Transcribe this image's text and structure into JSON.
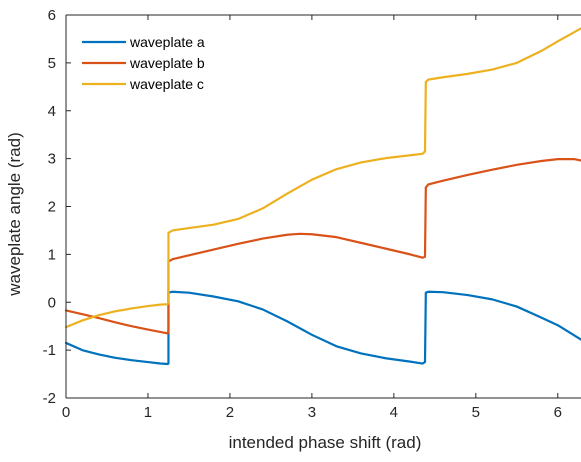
{
  "chart_data": {
    "type": "line",
    "xlabel": "intended phase shift (rad)",
    "ylabel": "waveplate angle (rad)",
    "xlim": [
      0,
      6.2832
    ],
    "ylim": [
      -2,
      6
    ],
    "xticks": [
      0,
      1,
      2,
      3,
      4,
      5,
      6
    ],
    "yticks": [
      -2,
      -1,
      0,
      1,
      2,
      3,
      4,
      5,
      6
    ],
    "grid": false,
    "legend_position": "top-left",
    "series": [
      {
        "name": "waveplate a",
        "color": "#0072BD",
        "segments": [
          {
            "x": [
              0,
              0.2,
              0.4,
              0.6,
              0.8,
              1.0,
              1.15,
              1.24,
              1.25
            ],
            "y": [
              -0.85,
              -1.0,
              -1.09,
              -1.16,
              -1.21,
              -1.25,
              -1.28,
              -1.29,
              -1.28
            ]
          },
          {
            "x": [
              1.25,
              1.3,
              1.5,
              1.8,
              2.1,
              2.4,
              2.7,
              3.0,
              3.3,
              3.6,
              3.9,
              4.2,
              4.35,
              4.38
            ],
            "y": [
              0.2,
              0.22,
              0.2,
              0.12,
              0.02,
              -0.15,
              -0.4,
              -0.68,
              -0.92,
              -1.07,
              -1.17,
              -1.24,
              -1.28,
              -1.25
            ]
          },
          {
            "x": [
              4.39,
              4.42,
              4.6,
              4.9,
              5.2,
              5.5,
              5.8,
              6.0,
              6.2832
            ],
            "y": [
              0.2,
              0.22,
              0.21,
              0.15,
              0.06,
              -0.09,
              -0.32,
              -0.48,
              -0.78
            ]
          }
        ]
      },
      {
        "name": "waveplate b",
        "color": "#D95319",
        "segments": [
          {
            "x": [
              0,
              0.2,
              0.4,
              0.6,
              0.8,
              1.0,
              1.15,
              1.24,
              1.25
            ],
            "y": [
              -0.17,
              -0.25,
              -0.33,
              -0.42,
              -0.5,
              -0.57,
              -0.62,
              -0.65,
              -0.6
            ]
          },
          {
            "x": [
              1.25,
              1.3,
              1.5,
              1.8,
              2.1,
              2.4,
              2.7,
              2.85,
              3.0,
              3.3,
              3.6,
              3.9,
              4.2,
              4.35,
              4.38
            ],
            "y": [
              0.85,
              0.9,
              0.98,
              1.1,
              1.22,
              1.33,
              1.41,
              1.43,
              1.42,
              1.36,
              1.24,
              1.12,
              1.0,
              0.93,
              0.95
            ]
          },
          {
            "x": [
              4.39,
              4.42,
              4.6,
              4.9,
              5.2,
              5.5,
              5.8,
              6.0,
              6.2,
              6.2832
            ],
            "y": [
              2.4,
              2.46,
              2.54,
              2.66,
              2.77,
              2.87,
              2.95,
              2.99,
              2.99,
              2.96
            ]
          }
        ]
      },
      {
        "name": "waveplate c",
        "color": "#EDB120",
        "segments": [
          {
            "x": [
              0,
              0.2,
              0.4,
              0.6,
              0.8,
              1.0,
              1.15,
              1.24,
              1.25
            ],
            "y": [
              -0.52,
              -0.38,
              -0.27,
              -0.19,
              -0.13,
              -0.08,
              -0.05,
              -0.04,
              0.0
            ]
          },
          {
            "x": [
              1.25,
              1.3,
              1.5,
              1.8,
              2.1,
              2.4,
              2.7,
              3.0,
              3.3,
              3.6,
              3.9,
              4.2,
              4.35,
              4.38
            ],
            "y": [
              1.45,
              1.5,
              1.55,
              1.62,
              1.74,
              1.96,
              2.27,
              2.56,
              2.78,
              2.92,
              3.01,
              3.07,
              3.1,
              3.15
            ]
          },
          {
            "x": [
              4.39,
              4.42,
              4.6,
              4.9,
              5.2,
              5.5,
              5.8,
              6.0,
              6.2832
            ],
            "y": [
              4.6,
              4.65,
              4.7,
              4.77,
              4.86,
              5.0,
              5.25,
              5.45,
              5.72
            ]
          }
        ]
      }
    ]
  }
}
